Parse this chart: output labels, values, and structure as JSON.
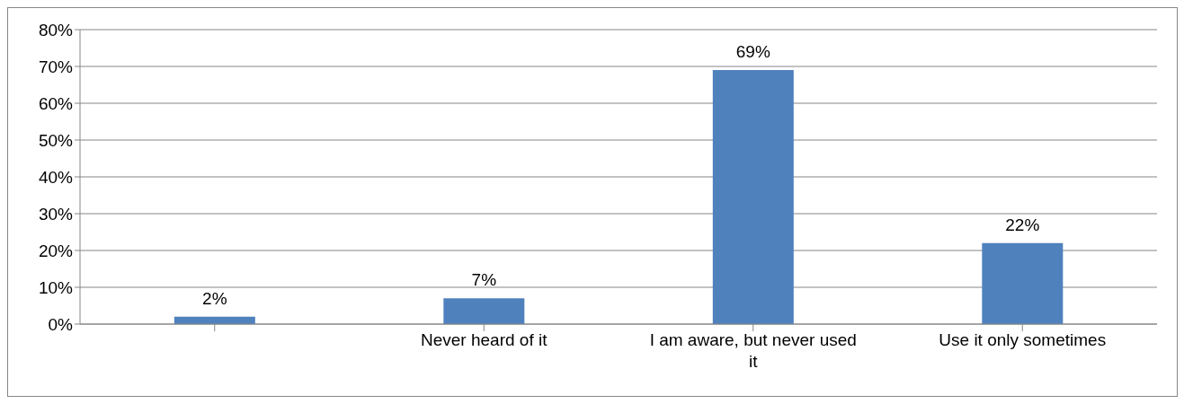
{
  "chart_data": {
    "type": "bar",
    "categories": [
      null,
      "Never heard of it",
      "I am aware, but never used it",
      "Use it only sometimes"
    ],
    "values": [
      2,
      7,
      69,
      22
    ],
    "color": "#4f81bd",
    "value_labels": [
      "2%",
      "7%",
      "69%",
      "22%"
    ],
    "ylim": [
      0,
      80
    ],
    "yticks": [
      {
        "value": 0,
        "label": "0%"
      },
      {
        "value": 10,
        "label": "10%"
      },
      {
        "value": 20,
        "label": "20%"
      },
      {
        "value": 30,
        "label": "30%"
      },
      {
        "value": 40,
        "label": "40%"
      },
      {
        "value": 50,
        "label": "50%"
      },
      {
        "value": 60,
        "label": "60%"
      },
      {
        "value": 70,
        "label": "70%"
      },
      {
        "value": 80,
        "label": "80%"
      }
    ],
    "grid": "y",
    "legend": false
  }
}
